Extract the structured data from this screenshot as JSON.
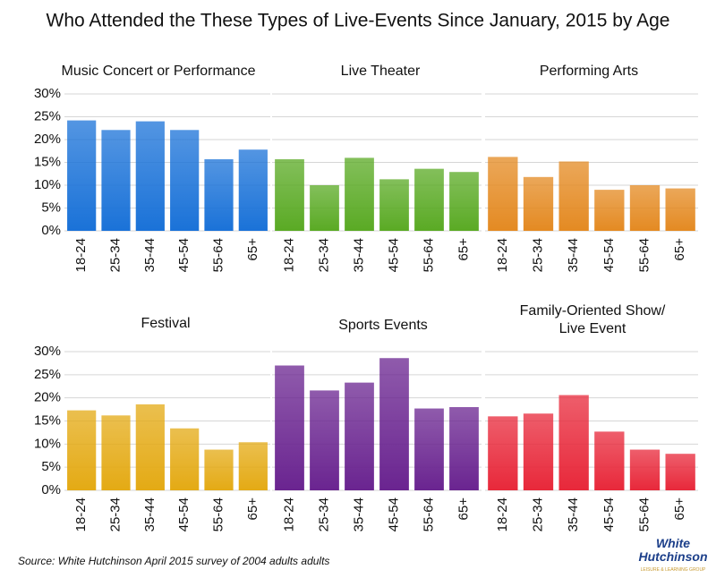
{
  "title": "Who Attended the These Types of Live-Events Since January, 2015 by Age",
  "source": "Source: White Hutchinson April 2015 survey of 2004 adults adults",
  "logo": [
    "White",
    "Hutchinson",
    "LEISURE & LEARNING GROUP"
  ],
  "chart_data": [
    {
      "type": "bar",
      "title": [
        "Music Concert or Performance"
      ],
      "categories": [
        "18-24",
        "25-34",
        "35-44",
        "45-54",
        "55-64",
        "65+"
      ],
      "values": [
        24.2,
        22.1,
        24.0,
        22.1,
        15.7,
        17.8
      ],
      "color": "#1a72d8",
      "ylim": [
        0,
        30
      ],
      "yticks": [
        {
          "value": 0,
          "label": "0%"
        },
        {
          "value": 5,
          "label": "5%"
        },
        {
          "value": 10,
          "label": "10%"
        },
        {
          "value": 15,
          "label": "15%"
        },
        {
          "value": 20,
          "label": "20%"
        },
        {
          "value": 25,
          "label": "25%"
        },
        {
          "value": 30,
          "label": "30%"
        }
      ],
      "grid": true
    },
    {
      "type": "bar",
      "title": [
        "Live Theater"
      ],
      "categories": [
        "18-24",
        "25-34",
        "35-44",
        "45-54",
        "55-64",
        "65+"
      ],
      "values": [
        15.7,
        10.0,
        16.0,
        11.3,
        13.6,
        12.9
      ],
      "color": "#5aaa24",
      "ylim": [
        0,
        30
      ],
      "yticks": [
        0,
        5,
        10,
        15,
        20,
        25,
        30
      ],
      "grid": true
    },
    {
      "type": "bar",
      "title": [
        "Performing Arts"
      ],
      "categories": [
        "18-24",
        "25-34",
        "35-44",
        "45-54",
        "55-64",
        "65+"
      ],
      "values": [
        16.2,
        11.8,
        15.2,
        9.0,
        10.0,
        9.3
      ],
      "color": "#e48a22",
      "ylim": [
        0,
        30
      ],
      "yticks": [
        0,
        5,
        10,
        15,
        20,
        25,
        30
      ],
      "grid": true
    },
    {
      "type": "bar",
      "title": [
        "Festival"
      ],
      "categories": [
        "18-24",
        "25-34",
        "35-44",
        "45-54",
        "55-64",
        "65+"
      ],
      "values": [
        17.3,
        16.2,
        18.6,
        13.4,
        8.8,
        10.4
      ],
      "color": "#e4aa14",
      "ylim": [
        0,
        30
      ],
      "yticks": [
        {
          "value": 0,
          "label": "0%"
        },
        {
          "value": 5,
          "label": "5%"
        },
        {
          "value": 10,
          "label": "10%"
        },
        {
          "value": 15,
          "label": "15%"
        },
        {
          "value": 20,
          "label": "20%"
        },
        {
          "value": 25,
          "label": "25%"
        },
        {
          "value": 30,
          "label": "30%"
        }
      ],
      "grid": true
    },
    {
      "type": "bar",
      "title": [
        "Sports Events"
      ],
      "categories": [
        "18-24",
        "25-34",
        "35-44",
        "45-54",
        "55-64",
        "65+"
      ],
      "values": [
        27.0,
        21.6,
        23.3,
        28.6,
        17.7,
        18.0
      ],
      "color": "#6a2490",
      "ylim": [
        0,
        30
      ],
      "yticks": [
        0,
        5,
        10,
        15,
        20,
        25,
        30
      ],
      "grid": true
    },
    {
      "type": "bar",
      "title": [
        "Family-Oriented Show/",
        "Live Event"
      ],
      "categories": [
        "18-24",
        "25-34",
        "35-44",
        "45-54",
        "55-64",
        "65+"
      ],
      "values": [
        16.0,
        16.6,
        20.6,
        12.7,
        8.8,
        7.9
      ],
      "color": "#e8283a",
      "ylim": [
        0,
        30
      ],
      "yticks": [
        0,
        5,
        10,
        15,
        20,
        25,
        30
      ],
      "grid": true
    }
  ]
}
